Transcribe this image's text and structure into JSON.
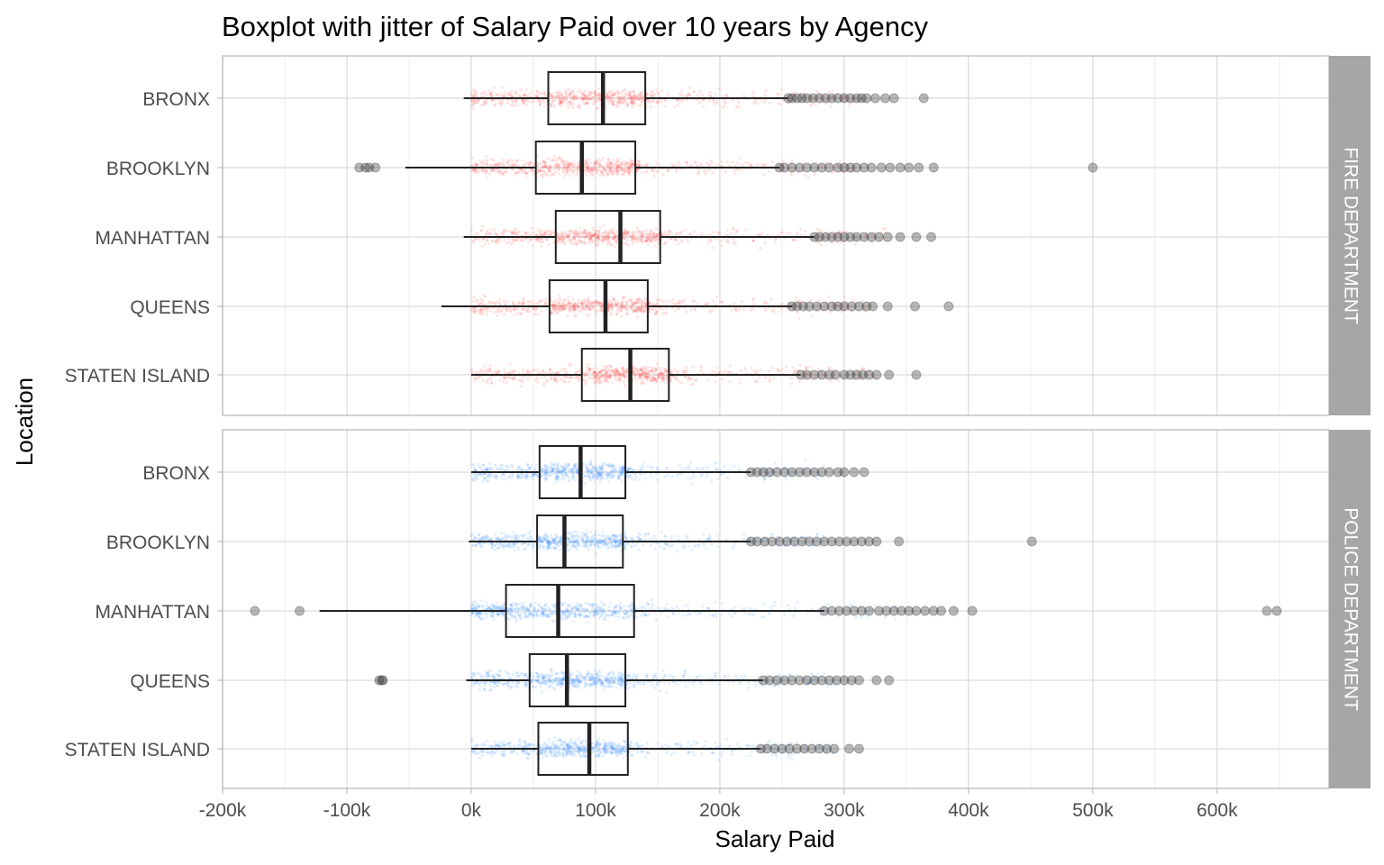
{
  "chart_data": {
    "type": "boxplot",
    "title": "Boxplot with jitter of Salary Paid over 10 years by Agency",
    "xlabel": "Salary Paid",
    "ylabel": "Location",
    "xlim": [
      -200000,
      690000
    ],
    "x_ticks": [
      -200000,
      -100000,
      0,
      100000,
      200000,
      300000,
      400000,
      500000,
      600000
    ],
    "x_tick_labels": [
      "-200k",
      "-100k",
      "0k",
      "100k",
      "200k",
      "300k",
      "400k",
      "500k",
      "600k"
    ],
    "grid": true,
    "colors": {
      "FIRE DEPARTMENT": "#ff2a2a",
      "POLICE DEPARTMENT": "#1a7dff",
      "box": "#222222",
      "outlier": "#333333",
      "strip": "#a6a6a6",
      "grid": "#dcdcdc"
    },
    "facets": [
      {
        "name": "FIRE DEPARTMENT",
        "categories": [
          {
            "label": "BRONX",
            "whisker_low": -6000,
            "q1": 62000,
            "median": 106000,
            "q3": 140000,
            "whisker_high": 255000,
            "outliers": [
              255000,
              258000,
              262000,
              266000,
              270000,
              275000,
              280000,
              285000,
              290000,
              295000,
              300000,
              305000,
              310000,
              314000,
              318000,
              325000,
              333000,
              340000,
              364000
            ]
          },
          {
            "label": "BROOKLYN",
            "whisker_low": -53000,
            "q1": 52000,
            "median": 89000,
            "q3": 132000,
            "whisker_high": 248000,
            "outliers": [
              -90000,
              -85000,
              -82000,
              -77000,
              248000,
              252000,
              258000,
              264000,
              270000,
              276000,
              282000,
              288000,
              295000,
              300000,
              305000,
              310000,
              316000,
              322000,
              330000,
              337000,
              345000,
              352000,
              360000,
              372000,
              500000
            ]
          },
          {
            "label": "MANHATTAN",
            "whisker_low": -6000,
            "q1": 68000,
            "median": 120000,
            "q3": 152000,
            "whisker_high": 276000,
            "outliers": [
              276000,
              280000,
              285000,
              290000,
              295000,
              300000,
              305000,
              310000,
              316000,
              322000,
              328000,
              335000,
              345000,
              358000,
              370000
            ]
          },
          {
            "label": "QUEENS",
            "whisker_low": -24000,
            "q1": 63000,
            "median": 108000,
            "q3": 142000,
            "whisker_high": 258000,
            "outliers": [
              258000,
              262000,
              267000,
              272000,
              278000,
              284000,
              290000,
              295000,
              300000,
              306000,
              312000,
              318000,
              323000,
              335000,
              357000,
              384000
            ]
          },
          {
            "label": "STATEN ISLAND",
            "whisker_low": 0,
            "q1": 89000,
            "median": 128000,
            "q3": 159000,
            "whisker_high": 265000,
            "outliers": [
              265000,
              270000,
              276000,
              282000,
              288000,
              293000,
              300000,
              305000,
              310000,
              315000,
              320000,
              326000,
              336000,
              358000
            ]
          }
        ]
      },
      {
        "name": "POLICE DEPARTMENT",
        "categories": [
          {
            "label": "BRONX",
            "whisker_low": 0,
            "q1": 55000,
            "median": 88000,
            "q3": 124000,
            "whisker_high": 225000,
            "outliers": [
              225000,
              230000,
              235000,
              240000,
              246000,
              252000,
              258000,
              264000,
              270000,
              276000,
              282000,
              288000,
              295000,
              300000,
              308000,
              316000
            ]
          },
          {
            "label": "BROOKLYN",
            "whisker_low": -2000,
            "q1": 53000,
            "median": 75000,
            "q3": 122000,
            "whisker_high": 225000,
            "outliers": [
              225000,
              230000,
              236000,
              242000,
              248000,
              254000,
              260000,
              266000,
              272000,
              278000,
              284000,
              290000,
              296000,
              302000,
              308000,
              314000,
              320000,
              326000,
              344000,
              451000
            ]
          },
          {
            "label": "MANHATTAN",
            "whisker_low": -122000,
            "q1": 28000,
            "median": 70000,
            "q3": 131000,
            "whisker_high": 284000,
            "outliers": [
              -174000,
              -138000,
              284000,
              290000,
              296000,
              302000,
              308000,
              314000,
              320000,
              328000,
              334000,
              340000,
              346000,
              352000,
              358000,
              365000,
              372000,
              378000,
              388000,
              403000,
              640000,
              648000
            ]
          },
          {
            "label": "QUEENS",
            "whisker_low": -4000,
            "q1": 47000,
            "median": 77000,
            "q3": 124000,
            "whisker_high": 235000,
            "outliers": [
              -74000,
              -72000,
              -71000,
              235000,
              240000,
              246000,
              252000,
              258000,
              264000,
              270000,
              276000,
              282000,
              288000,
              294000,
              300000,
              306000,
              312000,
              326000,
              336000
            ]
          },
          {
            "label": "STATEN ISLAND",
            "whisker_low": 0,
            "q1": 54000,
            "median": 95000,
            "q3": 126000,
            "whisker_high": 233000,
            "outliers": [
              233000,
              238000,
              244000,
              250000,
              256000,
              262000,
              268000,
              274000,
              280000,
              286000,
              292000,
              304000,
              312000
            ]
          }
        ]
      }
    ]
  }
}
